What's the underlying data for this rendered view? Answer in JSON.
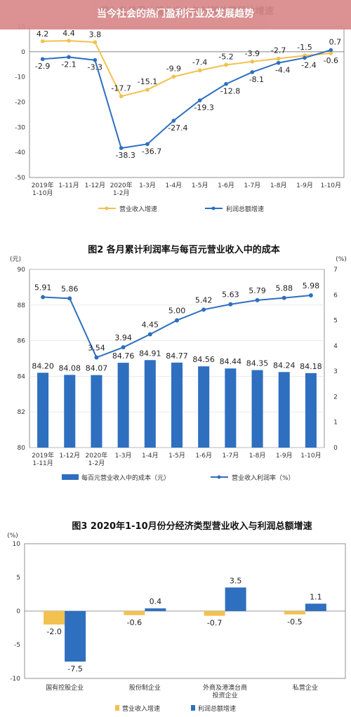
{
  "banner": {
    "title": "当今社会的热门盈利行业及发展趋势"
  },
  "colors": {
    "yellow": "#F2C14E",
    "blue": "#2E6FBF",
    "banner": "#D9898A"
  },
  "chart_data": [
    {
      "type": "line",
      "title": "图1 各月累计营业收入与利润总额同比增速",
      "categories": [
        "2019年\n1-10月",
        "1-11月",
        "1-12月",
        "2020年\n1-2月",
        "1-3月",
        "1-4月",
        "1-5月",
        "1-6月",
        "1-7月",
        "1-8月",
        "1-9月",
        "1-10月"
      ],
      "ylim": [
        -50,
        10
      ],
      "yticks": [
        10,
        0,
        -10,
        -20,
        -30,
        -40,
        -50
      ],
      "series": [
        {
          "name": "营业收入增速",
          "values": [
            4.2,
            4.4,
            3.8,
            -17.7,
            -15.1,
            -9.9,
            -7.4,
            -5.2,
            -3.9,
            -2.7,
            -1.5,
            -0.6
          ]
        },
        {
          "name": "利润总额增速",
          "values": [
            -2.9,
            -2.1,
            -3.3,
            -38.3,
            -36.7,
            -27.4,
            -19.3,
            -12.8,
            -8.1,
            -4.4,
            -2.4,
            0.7
          ]
        }
      ]
    },
    {
      "type": "bar",
      "title": "图2 各月累计利润率与每百元营业收入中的成本",
      "ylabel_left": "(元)",
      "ylabel_right": "(%)",
      "categories": [
        "2019年\n1-11月",
        "1-12月",
        "2020年\n1-2月",
        "1-3月",
        "1-4月",
        "1-5月",
        "1-6月",
        "1-7月",
        "1-8月",
        "1-9月",
        "1-10月"
      ],
      "ylim_left": [
        80,
        90
      ],
      "yticks_left": [
        90,
        88,
        86,
        84,
        82,
        80
      ],
      "ylim_right": [
        0,
        7
      ],
      "yticks_right": [
        7,
        6,
        5,
        4,
        3,
        2,
        1,
        0
      ],
      "series": [
        {
          "name": "每百元营业收入中的成本（元）",
          "kind": "bar",
          "values": [
            84.2,
            84.08,
            84.07,
            84.76,
            84.91,
            84.77,
            84.56,
            84.44,
            84.35,
            84.24,
            84.18
          ]
        },
        {
          "name": "营业收入利润率（%）",
          "kind": "line",
          "values": [
            5.91,
            5.86,
            3.54,
            3.94,
            4.45,
            5.0,
            5.42,
            5.63,
            5.79,
            5.88,
            5.98
          ]
        }
      ]
    },
    {
      "type": "bar",
      "title": "图3 2020年1-10月份分经济类型营业收入与利润总额增速",
      "ylabel": "(%)",
      "categories": [
        "国有控股企业",
        "股份制企业",
        "外商及港澳台商\n投资企业",
        "私营企业"
      ],
      "ylim": [
        -10,
        10
      ],
      "yticks": [
        10,
        5,
        0,
        -5,
        -10
      ],
      "series": [
        {
          "name": "营业收入增速",
          "values": [
            -2.0,
            -0.6,
            -0.7,
            -0.5
          ]
        },
        {
          "name": "利润总额增速",
          "values": [
            -7.5,
            0.4,
            3.5,
            1.1
          ]
        }
      ]
    }
  ]
}
